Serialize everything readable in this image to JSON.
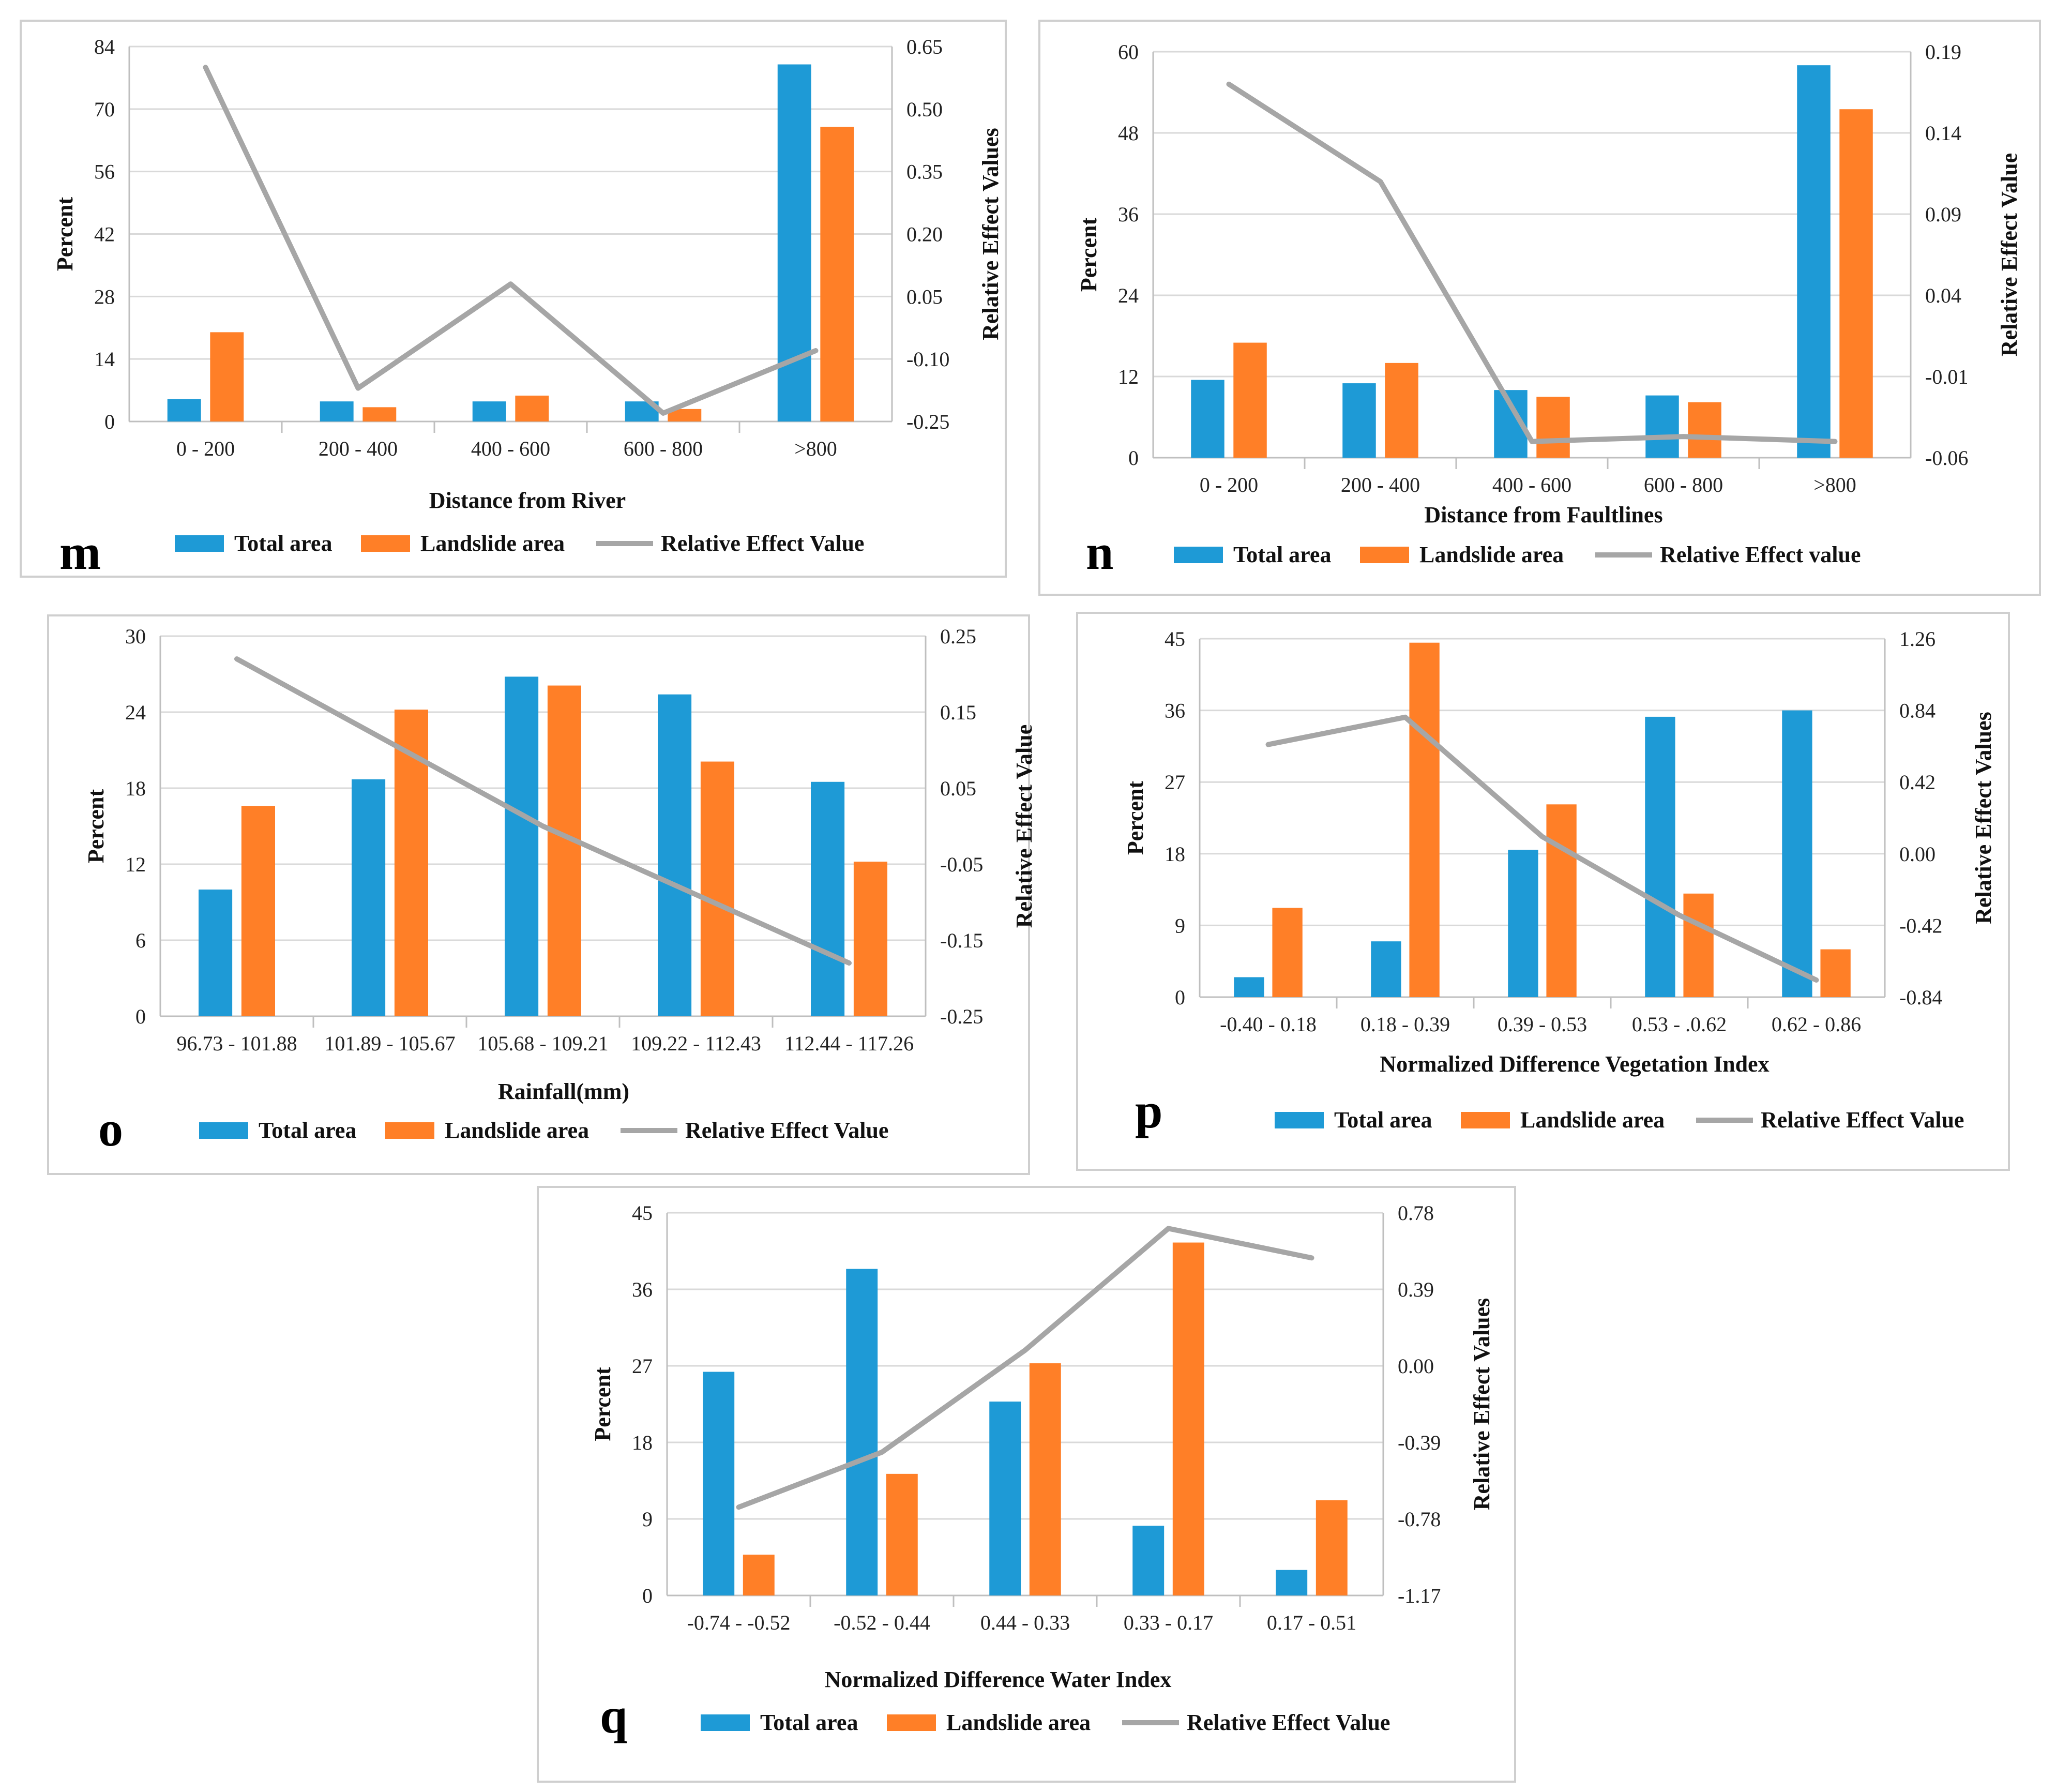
{
  "colors": {
    "total": "#1e9ad6",
    "landslide": "#ff7f27",
    "rev": "#a6a6a6"
  },
  "legend": {
    "total": "Total area",
    "landslide": "Landslide area"
  },
  "chart_data": [
    {
      "letter": "m",
      "type": "bar",
      "xlabel": "Distance from River",
      "ylabel": "Percent",
      "y2label": "Relative Effect Values",
      "rev_legend": "Relative Effect Value",
      "categories": [
        "0 - 200",
        "200 - 400",
        "400 - 600",
        "600 - 800",
        ">800"
      ],
      "series": [
        {
          "name": "Total area",
          "values": [
            5.0,
            4.5,
            4.5,
            4.5,
            80
          ]
        },
        {
          "name": "Landslide area",
          "values": [
            20,
            3.2,
            5.8,
            2.8,
            66
          ]
        }
      ],
      "rev": [
        0.6,
        -0.17,
        0.08,
        -0.23,
        -0.08
      ],
      "ylim": [
        0,
        84
      ],
      "yticks": [
        "0",
        "14",
        "28",
        "42",
        "56",
        "70",
        "84"
      ],
      "y2lim": [
        -0.25,
        0.65
      ],
      "y2ticks": [
        "-0.25",
        "-0.10",
        "0.05",
        "0.20",
        "0.35",
        "0.50",
        "0.65"
      ]
    },
    {
      "letter": "n",
      "type": "bar",
      "xlabel": "Distance from Faultlines",
      "ylabel": "Percent",
      "y2label": "Relative Effect Value",
      "rev_legend": "Relative Effect value",
      "categories": [
        "0 - 200",
        "200 - 400",
        "400 - 600",
        "600 - 800",
        ">800"
      ],
      "series": [
        {
          "name": "Total area",
          "values": [
            11.5,
            11,
            10,
            9.2,
            58
          ]
        },
        {
          "name": "Landslide area",
          "values": [
            17,
            14,
            9,
            8.2,
            51.5
          ]
        }
      ],
      "rev": [
        0.17,
        0.11,
        -0.05,
        -0.047,
        -0.05
      ],
      "ylim": [
        0,
        60
      ],
      "yticks": [
        "0",
        "12",
        "24",
        "36",
        "48",
        "60"
      ],
      "y2lim": [
        -0.06,
        0.19
      ],
      "y2ticks": [
        "-0.06",
        "-0.01",
        "0.04",
        "0.09",
        "0.14",
        "0.19"
      ]
    },
    {
      "letter": "o",
      "type": "bar",
      "xlabel": "Rainfall(mm)",
      "ylabel": "Percent",
      "y2label": "Relative Effect Value",
      "rev_legend": "Relative Effect Value",
      "categories": [
        "96.73 - 101.88",
        "101.89 - 105.67",
        "105.68 - 109.21",
        "109.22 - 112.43",
        "112.44 - 117.26"
      ],
      "series": [
        {
          "name": "Total area",
          "values": [
            10,
            18.7,
            26.8,
            25.4,
            18.5
          ]
        },
        {
          "name": "Landslide area",
          "values": [
            16.6,
            24.2,
            26.1,
            20.1,
            12.2
          ]
        }
      ],
      "rev": [
        0.22,
        0.11,
        0.0,
        -0.09,
        -0.18
      ],
      "ylim": [
        0,
        30
      ],
      "yticks": [
        "0",
        "6",
        "12",
        "18",
        "24",
        "30"
      ],
      "y2lim": [
        -0.25,
        0.25
      ],
      "y2ticks": [
        "-0.25",
        "-0.15",
        "-0.05",
        "0.05",
        "0.15",
        "0.25"
      ]
    },
    {
      "letter": "p",
      "type": "bar",
      "xlabel": "Normalized Difference Vegetation  Index",
      "ylabel": "Percent",
      "y2label": "Relative Effect Values",
      "rev_legend": "Relative Effect Value",
      "categories": [
        "-0.40 - 0.18",
        "0.18 - 0.39",
        "0.39 - 0.53",
        "0.53 - .0.62",
        "0.62 - 0.86"
      ],
      "series": [
        {
          "name": "Total area",
          "values": [
            2.5,
            7,
            18.5,
            35.2,
            36
          ]
        },
        {
          "name": "Landslide area",
          "values": [
            11.2,
            44.5,
            24.2,
            13,
            6
          ]
        }
      ],
      "rev": [
        0.64,
        0.8,
        0.1,
        -0.36,
        -0.74
      ],
      "ylim": [
        0,
        45
      ],
      "yticks": [
        "0",
        "9",
        "18",
        "27",
        "36",
        "45"
      ],
      "y2lim": [
        -0.84,
        1.26
      ],
      "y2ticks": [
        "-0.84",
        "-0.42",
        "0.00",
        "0.42",
        "0.84",
        "1.26"
      ]
    },
    {
      "letter": "q",
      "type": "bar",
      "xlabel": "Normalized Difference Water Index",
      "ylabel": "Percent",
      "y2label": "Relative Effect Values",
      "rev_legend": "Relative Effect Value",
      "categories": [
        "-0.74 - -0.52",
        "-0.52 - 0.44",
        "0.44 - 0.33",
        "0.33 - 0.17",
        "0.17 - 0.51"
      ],
      "series": [
        {
          "name": "Total area",
          "values": [
            26.3,
            38.4,
            22.8,
            8.2,
            3
          ]
        },
        {
          "name": "Landslide area",
          "values": [
            4.8,
            14.3,
            27.3,
            41.5,
            11.2
          ]
        }
      ],
      "rev": [
        -0.72,
        -0.44,
        0.08,
        0.7,
        0.55
      ],
      "ylim": [
        0,
        45
      ],
      "yticks": [
        "0",
        "9",
        "18",
        "27",
        "36",
        "45"
      ],
      "y2lim": [
        -1.17,
        0.78
      ],
      "y2ticks": [
        "-1.17",
        "-0.78",
        "-0.39",
        "0.00",
        "0.39",
        "0.78"
      ]
    }
  ]
}
